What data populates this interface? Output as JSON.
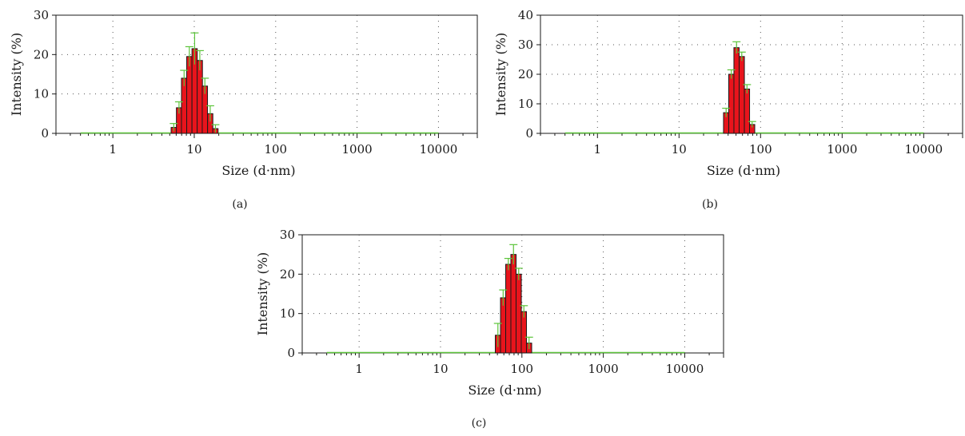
{
  "chart_data": [
    {
      "type": "bar",
      "panel_label": "(a)",
      "xlabel": "Size (d·nm)",
      "ylabel": "Intensity (%)",
      "xscale": "log",
      "xlim": [
        0.2,
        30000
      ],
      "ylim": [
        0,
        30
      ],
      "yticks": [
        0,
        10,
        20,
        30
      ],
      "xticks": [
        1,
        10,
        100,
        1000,
        10000
      ],
      "xtick_labels": [
        "1",
        "10",
        "100",
        "1000",
        "10000"
      ],
      "grid": true,
      "colors": {
        "bar": "#e8141c",
        "bar_edge": "#1a1a1a",
        "error": "#5cc43a",
        "baseline": "#5cc43a"
      },
      "baseline_range": [
        0.4,
        10000
      ],
      "x": [
        5.6,
        6.5,
        7.5,
        8.7,
        10.1,
        11.7,
        13.5,
        15.7,
        18.2
      ],
      "values": [
        1.5,
        6.5,
        14.0,
        19.5,
        21.5,
        18.5,
        12.0,
        5.0,
        1.2
      ],
      "errors": [
        1.0,
        1.5,
        2.0,
        2.5,
        4.0,
        2.5,
        2.0,
        2.0,
        1.0
      ]
    },
    {
      "type": "bar",
      "panel_label": "(b)",
      "xlabel": "Size (d·nm)",
      "ylabel": "Intensity (%)",
      "xscale": "log",
      "xlim": [
        0.2,
        30000
      ],
      "ylim": [
        0,
        40
      ],
      "yticks": [
        0,
        10,
        20,
        30,
        40
      ],
      "xticks": [
        1,
        10,
        100,
        1000,
        10000
      ],
      "xtick_labels": [
        "1",
        "10",
        "100",
        "1000",
        "10000"
      ],
      "grid": true,
      "colors": {
        "bar": "#e8141c",
        "bar_edge": "#1a1a1a",
        "error": "#5cc43a",
        "baseline": "#5cc43a"
      },
      "baseline_range": [
        0.4,
        10000
      ],
      "x": [
        37.8,
        43.8,
        50.7,
        58.8,
        68.1,
        78.8
      ],
      "values": [
        7.0,
        20.0,
        29.0,
        26.0,
        15.0,
        3.0
      ],
      "errors": [
        1.5,
        1.5,
        2.0,
        1.5,
        1.5,
        1.0
      ]
    },
    {
      "type": "bar",
      "panel_label": "(c)",
      "xlabel": "Size (d·nm)",
      "ylabel": "Intensity (%)",
      "xscale": "log",
      "xlim": [
        0.2,
        30000
      ],
      "ylim": [
        0,
        30
      ],
      "yticks": [
        0,
        10,
        20,
        30
      ],
      "xticks": [
        1,
        10,
        100,
        1000,
        10000
      ],
      "xtick_labels": [
        "1",
        "10",
        "100",
        "1000",
        "10000"
      ],
      "grid": true,
      "colors": {
        "bar": "#e8141c",
        "bar_edge": "#1a1a1a",
        "error": "#5cc43a",
        "baseline": "#5cc43a"
      },
      "baseline_range": [
        0.4,
        10000
      ],
      "x": [
        50.7,
        58.8,
        68.1,
        78.8,
        91.3,
        105.7,
        122.4
      ],
      "values": [
        4.5,
        14.0,
        22.5,
        25.0,
        20.0,
        10.5,
        2.5
      ],
      "errors": [
        3.0,
        2.0,
        1.5,
        2.5,
        1.5,
        1.5,
        1.5
      ]
    }
  ]
}
